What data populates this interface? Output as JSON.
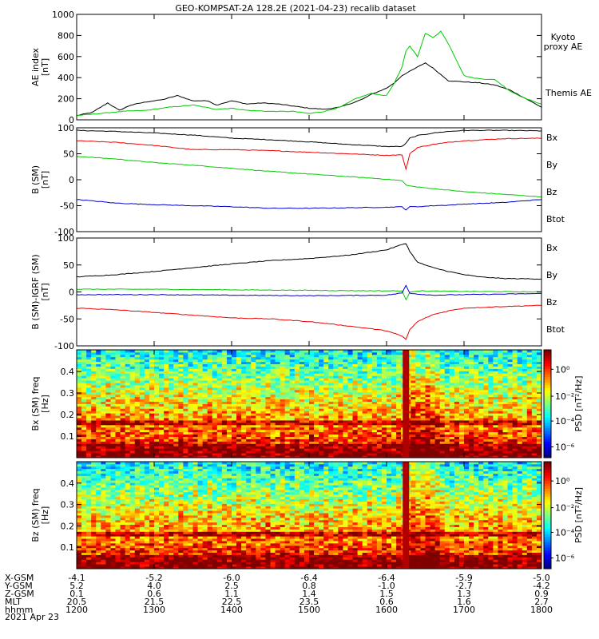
{
  "title": "GEO-KOMPSAT-2A 128.2E (2021-04-23) recalib dataset",
  "date_label": "2021 Apr 23",
  "colors": {
    "black": "#000000",
    "green": "#00cc00",
    "red": "#ee0000",
    "blue": "#0000cc"
  },
  "chart_data": [
    {
      "type": "line",
      "ylabel": "AE index [nT]",
      "ylim": [
        0,
        1000
      ],
      "yticks": [
        0,
        200,
        400,
        600,
        800,
        1000
      ],
      "xlim": [
        1200,
        1800
      ],
      "legend": [
        {
          "name": "Kyoto proxy AE",
          "lines": [
            "Kyoto",
            "proxy AE"
          ],
          "color": "green"
        },
        {
          "name": "Themis AE",
          "lines": [
            "Themis AE"
          ],
          "color": "black"
        }
      ],
      "series": [
        {
          "name": "Themis AE",
          "color": "black",
          "x": [
            1200,
            1220,
            1240,
            1255,
            1270,
            1290,
            1310,
            1330,
            1350,
            1370,
            1380,
            1400,
            1420,
            1440,
            1460,
            1480,
            1500,
            1520,
            1540,
            1560,
            1570,
            1580,
            1590,
            1600,
            1610,
            1620,
            1630,
            1640,
            1650,
            1660,
            1670,
            1680,
            1700,
            1720,
            1740,
            1760,
            1780,
            1800
          ],
          "values": [
            40,
            70,
            160,
            90,
            140,
            170,
            190,
            230,
            180,
            180,
            140,
            180,
            150,
            160,
            150,
            130,
            110,
            100,
            120,
            170,
            200,
            240,
            270,
            300,
            350,
            420,
            460,
            500,
            540,
            490,
            430,
            370,
            360,
            350,
            330,
            280,
            200,
            120
          ]
        },
        {
          "name": "Kyoto proxy AE",
          "color": "green",
          "x": [
            1200,
            1230,
            1260,
            1290,
            1320,
            1350,
            1380,
            1400,
            1420,
            1450,
            1480,
            1500,
            1520,
            1540,
            1560,
            1580,
            1590,
            1600,
            1610,
            1620,
            1625,
            1630,
            1640,
            1650,
            1660,
            1670,
            1680,
            1700,
            1710,
            1720,
            1740,
            1760,
            1780,
            1800
          ],
          "values": [
            40,
            60,
            80,
            90,
            120,
            140,
            100,
            110,
            90,
            80,
            80,
            60,
            80,
            120,
            200,
            250,
            240,
            230,
            350,
            500,
            650,
            700,
            600,
            820,
            780,
            840,
            720,
            420,
            400,
            390,
            380,
            270,
            200,
            150
          ]
        }
      ]
    },
    {
      "type": "line",
      "ylabel": "B (SM) [nT]",
      "ylim": [
        -100,
        100
      ],
      "yticks": [
        -100,
        -50,
        0,
        50,
        100
      ],
      "xlim": [
        1200,
        1800
      ],
      "legend": [
        {
          "name": "Bx",
          "color": "blue"
        },
        {
          "name": "By",
          "color": "green"
        },
        {
          "name": "Bz",
          "color": "red"
        },
        {
          "name": "Btot",
          "color": "black"
        }
      ],
      "series": [
        {
          "name": "Btot",
          "color": "black",
          "x": [
            1200,
            1250,
            1300,
            1350,
            1400,
            1450,
            1500,
            1550,
            1600,
            1620,
            1625,
            1630,
            1640,
            1660,
            1680,
            1700,
            1750,
            1800
          ],
          "values": [
            95,
            93,
            90,
            86,
            80,
            77,
            73,
            68,
            64,
            64,
            70,
            80,
            85,
            90,
            93,
            95,
            95,
            94
          ]
        },
        {
          "name": "Bz",
          "color": "red",
          "x": [
            1200,
            1250,
            1300,
            1350,
            1400,
            1450,
            1500,
            1550,
            1600,
            1620,
            1625,
            1630,
            1640,
            1660,
            1680,
            1700,
            1750,
            1800
          ],
          "values": [
            75,
            72,
            66,
            58,
            58,
            56,
            53,
            50,
            47,
            48,
            20,
            50,
            62,
            68,
            72,
            75,
            79,
            80
          ]
        },
        {
          "name": "By",
          "color": "green",
          "x": [
            1200,
            1250,
            1300,
            1350,
            1400,
            1450,
            1500,
            1550,
            1600,
            1620,
            1625,
            1630,
            1640,
            1660,
            1680,
            1700,
            1750,
            1800
          ],
          "values": [
            45,
            40,
            33,
            28,
            22,
            16,
            11,
            6,
            1,
            -2,
            -10,
            -12,
            -14,
            -17,
            -20,
            -23,
            -28,
            -33
          ]
        },
        {
          "name": "Bx",
          "color": "blue",
          "x": [
            1200,
            1250,
            1300,
            1350,
            1400,
            1450,
            1500,
            1550,
            1600,
            1620,
            1625,
            1630,
            1640,
            1660,
            1680,
            1700,
            1750,
            1800
          ],
          "values": [
            -38,
            -45,
            -48,
            -50,
            -52,
            -55,
            -55,
            -54,
            -53,
            -52,
            -58,
            -52,
            -52,
            -50,
            -49,
            -47,
            -44,
            -38
          ]
        }
      ]
    },
    {
      "type": "line",
      "ylabel": "B (SM)-IGRF (SM) [nT]",
      "ylim": [
        -100,
        100
      ],
      "yticks": [
        -100,
        -50,
        0,
        50,
        100
      ],
      "xlim": [
        1200,
        1800
      ],
      "legend": [
        {
          "name": "Bx",
          "color": "blue"
        },
        {
          "name": "By",
          "color": "green"
        },
        {
          "name": "Bz",
          "color": "red"
        },
        {
          "name": "Btot",
          "color": "black"
        }
      ],
      "series": [
        {
          "name": "Btot",
          "color": "black",
          "x": [
            1200,
            1250,
            1300,
            1350,
            1400,
            1450,
            1500,
            1550,
            1600,
            1620,
            1625,
            1630,
            1640,
            1660,
            1680,
            1700,
            1720,
            1750,
            1800
          ],
          "values": [
            28,
            32,
            38,
            45,
            52,
            58,
            62,
            68,
            78,
            88,
            90,
            75,
            55,
            45,
            38,
            32,
            28,
            25,
            24
          ]
        },
        {
          "name": "By",
          "color": "green",
          "x": [
            1200,
            1300,
            1400,
            1500,
            1600,
            1620,
            1625,
            1630,
            1640,
            1700,
            1800
          ],
          "values": [
            5,
            5,
            4,
            3,
            2,
            2,
            -15,
            0,
            2,
            1,
            0
          ]
        },
        {
          "name": "Bx",
          "color": "blue",
          "x": [
            1200,
            1300,
            1400,
            1500,
            1600,
            1620,
            1625,
            1630,
            1640,
            1660,
            1700,
            1800
          ],
          "values": [
            -5,
            -5,
            -6,
            -7,
            -6,
            -2,
            12,
            -2,
            -4,
            -6,
            -5,
            -3
          ]
        },
        {
          "name": "Bz",
          "color": "red",
          "x": [
            1200,
            1250,
            1300,
            1350,
            1400,
            1450,
            1500,
            1550,
            1600,
            1620,
            1625,
            1630,
            1640,
            1660,
            1680,
            1700,
            1750,
            1800
          ],
          "values": [
            -30,
            -33,
            -38,
            -43,
            -48,
            -50,
            -55,
            -63,
            -72,
            -82,
            -88,
            -70,
            -55,
            -42,
            -35,
            -30,
            -27,
            -25
          ]
        }
      ]
    },
    {
      "type": "heatmap",
      "ylabel": "Bx (SM) freq [Hz]",
      "ylim": [
        0,
        0.5
      ],
      "yticks": [
        0.1,
        0.2,
        0.3,
        0.4
      ],
      "xlim": [
        1200,
        1800
      ],
      "colorbar_label": "PSD [nT²/Hz]",
      "colorbar_ticks": [
        "10⁰",
        "10⁻²",
        "10⁻⁴",
        "10⁻⁶"
      ],
      "burst_time": 1625
    },
    {
      "type": "heatmap",
      "ylabel": "Bz (SM) freq [Hz]",
      "ylim": [
        0,
        0.5
      ],
      "yticks": [
        0.1,
        0.2,
        0.3,
        0.4
      ],
      "xlim": [
        1200,
        1800
      ],
      "colorbar_label": "PSD [nT²/Hz]",
      "colorbar_ticks": [
        "10⁰",
        "10⁻²",
        "10⁻⁴",
        "10⁻⁶"
      ],
      "burst_time": 1625
    }
  ],
  "orbit_table": {
    "rows": [
      {
        "label": "X-GSM",
        "values": [
          "-4.1",
          "-5.2",
          "-6.0",
          "-6.4",
          "-6.4",
          "-5.9",
          "-5.0"
        ]
      },
      {
        "label": "Y-GSM",
        "values": [
          "5.2",
          "4.0",
          "2.5",
          "0.8",
          "-1.0",
          "-2.7",
          "-4.2"
        ]
      },
      {
        "label": "Z-GSM",
        "values": [
          "0.1",
          "0.6",
          "1.1",
          "1.4",
          "1.5",
          "1.3",
          "0.9"
        ]
      },
      {
        "label": "MLT",
        "values": [
          "20.5",
          "21.5",
          "22.5",
          "23.5",
          "0.6",
          "1.6",
          "2.7"
        ]
      },
      {
        "label": "hhmm",
        "values": [
          "1200",
          "1300",
          "1400",
          "1500",
          "1600",
          "1700",
          "1800"
        ]
      }
    ]
  }
}
